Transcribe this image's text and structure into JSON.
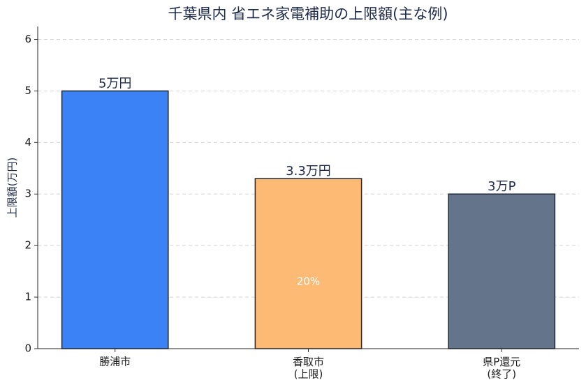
{
  "chart_data": {
    "type": "bar",
    "title": "千葉県内 省エネ家電補助の上限額(主な例)",
    "y_label": "上限額(万円)",
    "categories": [
      "勝浦市",
      "香取市\n(上限)",
      "県P還元\n(終了)"
    ],
    "values": [
      5,
      3.3,
      3
    ],
    "value_labels": [
      "5万円",
      "3.3万円",
      "3万P"
    ],
    "colors": [
      "#3b82f6",
      "#fdba74",
      "#64748b"
    ],
    "annotations": [
      {
        "category": 1,
        "text": "20%"
      }
    ],
    "ylim": [
      0,
      6.25
    ],
    "yticks": [
      0,
      1,
      2,
      3,
      4,
      5,
      6
    ],
    "grid": true
  }
}
